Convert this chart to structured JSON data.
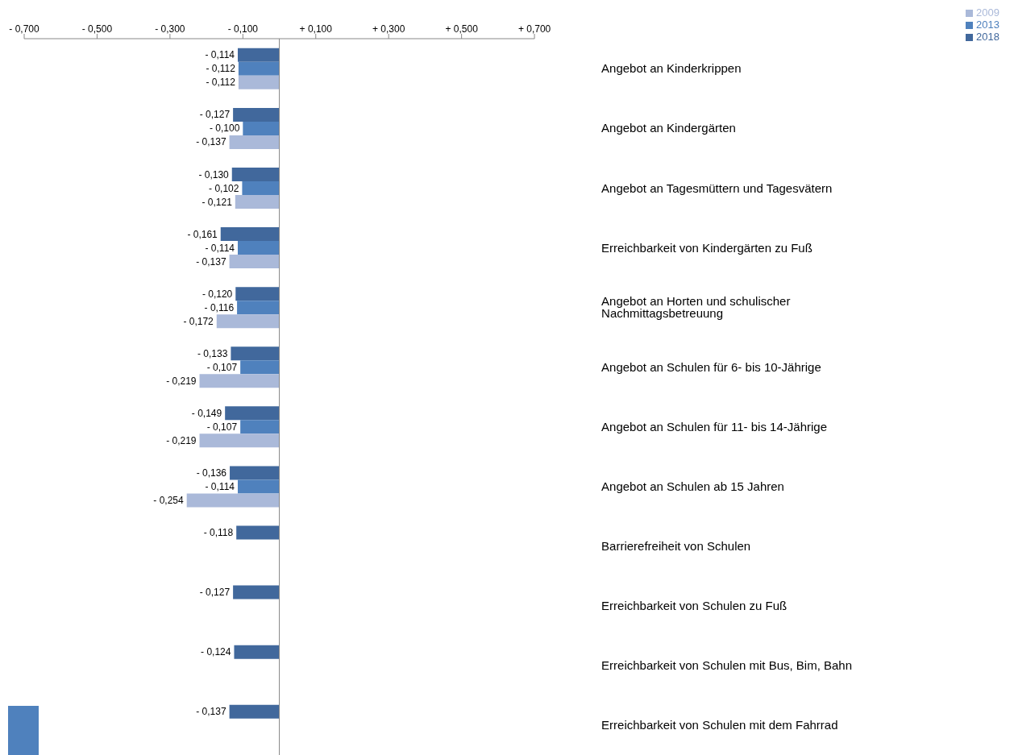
{
  "chart_data": {
    "type": "bar",
    "orientation": "horizontal",
    "legend": "top right",
    "categories": [
      "Angebot an Kinderkrippen",
      "Angebot an Kindergärten",
      "Angebot an Tagesmüttern und Tagesvätern",
      "Erreichbarkeit von Kindergärten zu Fuß",
      "Angebot an Horten und schulischer Nachmittagsbetreuung",
      "Angebot an Schulen für 6- bis 10-Jährige",
      "Angebot an Schulen für 11- bis 14-Jährige",
      "Angebot an Schulen ab 15 Jahren",
      "Barrierefreiheit von Schulen",
      "Erreichbarkeit von Schulen zu Fuß",
      "Erreichbarkeit von Schulen mit Bus, Bim, Bahn",
      "Erreichbarkeit von Schulen mit dem Fahrrad"
    ],
    "series": [
      {
        "name": "2018",
        "color": "#41689c",
        "values": [
          -0.114,
          -0.127,
          -0.13,
          -0.161,
          -0.12,
          -0.133,
          -0.149,
          -0.136,
          -0.118,
          -0.127,
          -0.124,
          -0.137
        ],
        "value_labels": [
          "- 0,114",
          "- 0,127",
          "- 0,130",
          "- 0,161",
          "- 0,120",
          "- 0,133",
          "- 0,149",
          "- 0,136",
          "- 0,118",
          "- 0,127",
          "- 0,124",
          "- 0,137"
        ]
      },
      {
        "name": "2013",
        "color": "#4f81bd",
        "values": [
          -0.112,
          -0.1,
          -0.102,
          -0.114,
          -0.116,
          -0.107,
          -0.107,
          -0.114,
          null,
          null,
          null,
          null
        ],
        "value_labels": [
          "- 0,112",
          "- 0,100",
          "- 0,102",
          "- 0,114",
          "- 0,116",
          "- 0,107",
          "- 0,107",
          "- 0,114",
          null,
          null,
          null,
          null
        ]
      },
      {
        "name": "2009",
        "color": "#aab9d9",
        "values": [
          -0.112,
          -0.137,
          -0.121,
          -0.137,
          -0.172,
          -0.219,
          -0.219,
          -0.254,
          null,
          null,
          null,
          null
        ],
        "value_labels": [
          "- 0,112",
          "- 0,137",
          "- 0,121",
          "- 0,137",
          "- 0,172",
          "- 0,219",
          "- 0,219",
          "- 0,254",
          null,
          null,
          null,
          null
        ]
      }
    ],
    "xlim": [
      -0.7,
      0.7
    ],
    "xticks": [
      {
        "value": -0.7,
        "label": "- 0,700"
      },
      {
        "value": -0.5,
        "label": "- 0,500"
      },
      {
        "value": -0.3,
        "label": "- 0,300"
      },
      {
        "value": -0.1,
        "label": "- 0,100"
      },
      {
        "value": 0.1,
        "label": "+ 0,100"
      },
      {
        "value": 0.3,
        "label": "+ 0,300"
      },
      {
        "value": 0.5,
        "label": "+ 0,500"
      },
      {
        "value": 0.7,
        "label": "+ 0,700"
      }
    ]
  }
}
